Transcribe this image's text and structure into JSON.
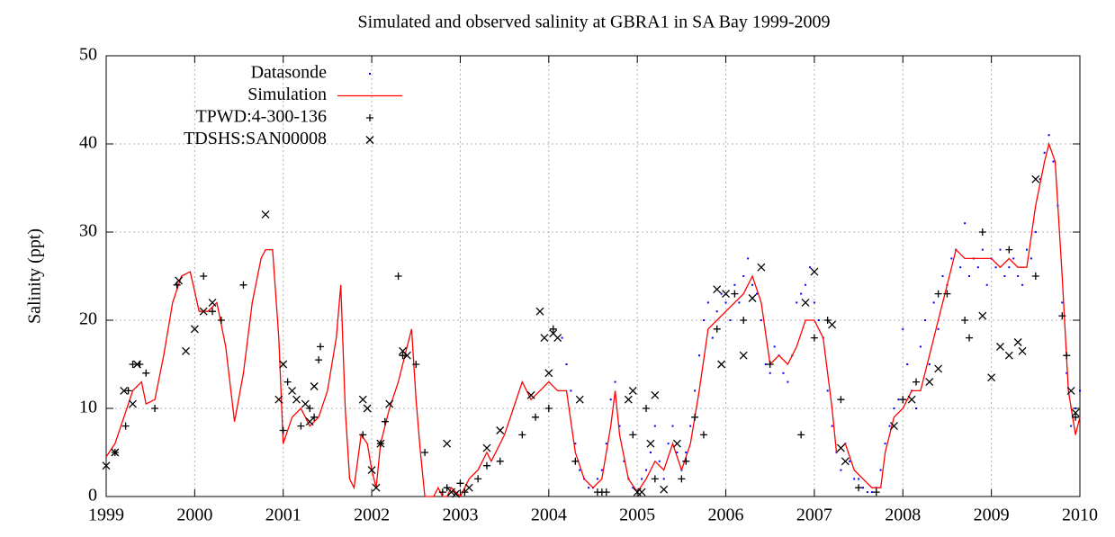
{
  "chart_data": {
    "type": "line",
    "title": "Simulated and observed salinity at GBRA1 in SA Bay 1999-2009",
    "y_label": "Salinity (ppt)",
    "xlim": [
      1999,
      2010
    ],
    "xticks": [
      1999,
      2000,
      2001,
      2002,
      2003,
      2004,
      2005,
      2006,
      2007,
      2008,
      2009,
      2010
    ],
    "ylim": [
      0,
      50
    ],
    "yticks": [
      0,
      10,
      20,
      30,
      40,
      50
    ],
    "grid": true,
    "legend_position": "top-left",
    "series": [
      {
        "name": "Datasonde",
        "color": "#0000ff",
        "style": "dot",
        "x": [
          2004.15,
          2004.2,
          2004.25,
          2004.3,
          2004.35,
          2004.4,
          2004.45,
          2004.5,
          2004.55,
          2004.6,
          2004.65,
          2004.7,
          2004.75,
          2004.8,
          2004.85,
          2004.9,
          2004.95,
          2005.0,
          2005.05,
          2005.1,
          2005.15,
          2005.2,
          2005.25,
          2005.3,
          2005.35,
          2005.4,
          2005.45,
          2005.5,
          2005.55,
          2005.6,
          2005.65,
          2005.7,
          2005.75,
          2005.8,
          2005.85,
          2005.9,
          2005.95,
          2006.0,
          2006.05,
          2006.1,
          2006.15,
          2006.2,
          2006.25,
          2006.3,
          2006.35,
          2006.4,
          2006.45,
          2006.5,
          2006.55,
          2006.6,
          2006.65,
          2006.7,
          2006.75,
          2006.8,
          2006.85,
          2006.9,
          2006.95,
          2007.0,
          2007.05,
          2007.1,
          2007.15,
          2007.2,
          2007.25,
          2007.3,
          2007.35,
          2007.4,
          2007.45,
          2007.5,
          2007.55,
          2007.6,
          2007.65,
          2007.7,
          2007.75,
          2007.8,
          2007.85,
          2007.9,
          2007.95,
          2008.0,
          2008.05,
          2008.1,
          2008.15,
          2008.2,
          2008.25,
          2008.3,
          2008.35,
          2008.4,
          2008.45,
          2008.5,
          2008.55,
          2008.6,
          2008.65,
          2008.7,
          2008.75,
          2008.8,
          2008.85,
          2008.9,
          2008.95,
          2009.0,
          2009.05,
          2009.1,
          2009.15,
          2009.2,
          2009.25,
          2009.3,
          2009.35,
          2009.4,
          2009.45,
          2009.5,
          2009.55,
          2009.6,
          2009.65,
          2009.7,
          2009.75,
          2009.8,
          2009.85,
          2009.9,
          2009.95,
          2010.0
        ],
        "values": [
          18,
          15,
          12,
          6,
          3,
          2,
          1,
          1,
          2,
          3,
          6,
          11,
          13,
          8,
          4,
          2,
          1,
          0.5,
          2,
          3,
          5,
          8,
          4,
          2,
          6,
          8,
          5,
          3,
          5,
          8,
          12,
          16,
          20,
          22,
          18,
          21,
          23,
          22,
          20,
          24,
          22,
          25,
          27,
          24,
          23,
          20,
          15,
          14,
          17,
          16,
          14,
          13,
          16,
          22,
          23,
          24,
          26,
          22,
          20,
          18,
          12,
          8,
          5,
          3,
          6,
          4,
          2,
          2,
          1,
          0.5,
          0.5,
          1,
          3,
          6,
          8,
          10,
          11,
          19,
          15,
          12,
          10,
          17,
          20,
          15,
          22,
          19,
          25,
          24,
          27,
          28,
          26,
          31,
          25,
          27,
          26,
          28,
          24,
          27,
          26,
          28,
          25,
          26,
          27,
          25,
          24,
          28,
          27,
          30,
          36,
          39,
          41,
          38,
          33,
          22,
          14,
          8,
          10,
          12
        ]
      },
      {
        "name": "Simulation",
        "color": "#ff0000",
        "style": "line",
        "x": [
          1999.0,
          1999.1,
          1999.2,
          1999.3,
          1999.4,
          1999.45,
          1999.55,
          1999.65,
          1999.75,
          1999.85,
          1999.95,
          2000.05,
          2000.15,
          2000.25,
          2000.35,
          2000.45,
          2000.55,
          2000.65,
          2000.75,
          2000.8,
          2000.88,
          2000.95,
          2001.0,
          2001.1,
          2001.2,
          2001.3,
          2001.4,
          2001.5,
          2001.6,
          2001.65,
          2001.7,
          2001.75,
          2001.8,
          2001.88,
          2001.95,
          2002.0,
          2002.05,
          2002.1,
          2002.2,
          2002.3,
          2002.4,
          2002.45,
          2002.5,
          2002.55,
          2002.6,
          2002.7,
          2002.75,
          2002.8,
          2002.85,
          2002.9,
          2003.0,
          2003.1,
          2003.2,
          2003.3,
          2003.35,
          2003.5,
          2003.6,
          2003.7,
          2003.8,
          2003.9,
          2004.0,
          2004.1,
          2004.2,
          2004.3,
          2004.4,
          2004.5,
          2004.6,
          2004.7,
          2004.75,
          2004.8,
          2004.9,
          2005.0,
          2005.1,
          2005.2,
          2005.3,
          2005.4,
          2005.5,
          2005.6,
          2005.7,
          2005.8,
          2005.9,
          2006.0,
          2006.1,
          2006.2,
          2006.3,
          2006.4,
          2006.5,
          2006.6,
          2006.7,
          2006.8,
          2006.9,
          2007.0,
          2007.1,
          2007.2,
          2007.25,
          2007.35,
          2007.45,
          2007.55,
          2007.65,
          2007.75,
          2007.8,
          2007.9,
          2008.0,
          2008.1,
          2008.2,
          2008.3,
          2008.4,
          2008.5,
          2008.6,
          2008.7,
          2008.8,
          2008.9,
          2009.0,
          2009.1,
          2009.2,
          2009.3,
          2009.4,
          2009.5,
          2009.6,
          2009.65,
          2009.72,
          2009.8,
          2009.87,
          2009.95,
          2010.0
        ],
        "values": [
          4.5,
          6,
          9,
          12,
          13,
          10.5,
          11,
          16,
          22,
          25,
          25.5,
          21,
          21,
          22,
          17,
          8.5,
          14,
          22,
          27,
          28,
          28,
          18,
          6,
          9,
          10,
          8,
          9,
          12,
          18,
          24,
          10,
          2,
          1,
          7,
          6,
          3,
          1,
          6,
          10,
          13,
          17,
          19,
          11,
          5,
          0,
          0,
          1,
          0,
          0,
          1,
          0,
          2,
          3,
          5,
          4,
          7,
          10,
          13,
          11,
          12,
          13,
          12,
          12,
          5,
          2,
          1,
          2,
          8,
          12,
          7,
          2,
          0.5,
          2,
          4,
          3,
          6,
          3,
          6,
          12,
          19,
          20,
          21,
          22,
          23,
          25,
          22,
          15,
          16,
          15,
          17,
          20,
          20,
          18,
          10,
          5,
          6,
          3,
          2,
          1,
          1,
          5,
          9,
          10,
          12,
          12,
          16,
          20,
          24,
          28,
          27,
          27,
          27,
          27,
          26,
          27,
          26,
          26,
          33,
          38,
          40,
          38,
          25,
          12,
          7,
          9
        ]
      },
      {
        "name": "TPWD:4-300-136",
        "color": "#000000",
        "style": "plus",
        "x": [
          1999.1,
          1999.22,
          1999.25,
          1999.3,
          1999.38,
          1999.45,
          1999.55,
          1999.8,
          2000.1,
          2000.2,
          2000.3,
          2000.55,
          2001.0,
          2001.05,
          2001.2,
          2001.3,
          2001.35,
          2001.4,
          2001.42,
          2001.9,
          2002.1,
          2002.15,
          2002.3,
          2002.35,
          2002.5,
          2002.6,
          2002.8,
          2002.85,
          2003.0,
          2003.05,
          2003.2,
          2003.3,
          2003.45,
          2003.7,
          2003.85,
          2004.0,
          2004.05,
          2004.3,
          2004.55,
          2004.6,
          2004.65,
          2004.95,
          2005.1,
          2005.2,
          2005.5,
          2005.55,
          2005.65,
          2005.75,
          2005.9,
          2006.1,
          2006.2,
          2006.5,
          2006.85,
          2007.0,
          2007.15,
          2007.3,
          2007.5,
          2007.7,
          2008.0,
          2008.15,
          2008.4,
          2008.5,
          2008.7,
          2008.75,
          2008.9,
          2009.2,
          2009.5,
          2009.8,
          2009.85,
          2009.95
        ],
        "values": [
          5,
          8,
          12,
          15,
          15,
          14,
          10,
          24,
          25,
          21,
          20,
          24,
          7.5,
          13,
          8,
          10,
          9,
          15.5,
          17,
          7,
          6,
          8.5,
          25,
          16,
          15,
          5,
          0.5,
          1,
          1.5,
          0.5,
          2,
          3.5,
          4,
          7,
          9,
          10,
          19,
          4,
          0.5,
          0.5,
          0.5,
          7,
          10,
          2,
          2,
          4,
          9,
          7,
          19,
          23,
          20,
          15,
          7,
          18,
          20,
          11,
          1,
          0.5,
          11,
          13,
          23,
          23,
          20,
          18,
          30,
          28,
          25,
          20.5,
          16,
          9
        ]
      },
      {
        "name": "TDSHS:SAN00008",
        "color": "#000000",
        "style": "cross",
        "x": [
          1999.0,
          1999.1,
          1999.2,
          1999.3,
          1999.35,
          1999.82,
          1999.9,
          2000.0,
          2000.1,
          2000.2,
          2000.8,
          2000.95,
          2001.0,
          2001.1,
          2001.15,
          2001.25,
          2001.3,
          2001.35,
          2001.9,
          2001.95,
          2002.0,
          2002.05,
          2002.1,
          2002.2,
          2002.35,
          2002.4,
          2002.85,
          2002.9,
          2002.95,
          2003.1,
          2003.3,
          2003.45,
          2003.8,
          2003.9,
          2003.95,
          2004.0,
          2004.05,
          2004.1,
          2004.35,
          2004.9,
          2004.95,
          2005.0,
          2005.05,
          2005.15,
          2005.2,
          2005.3,
          2005.45,
          2005.9,
          2005.95,
          2006.0,
          2006.2,
          2006.3,
          2006.4,
          2006.9,
          2007.0,
          2007.2,
          2007.3,
          2007.35,
          2007.9,
          2008.1,
          2008.3,
          2008.4,
          2008.9,
          2009.0,
          2009.1,
          2009.2,
          2009.3,
          2009.35,
          2009.5,
          2009.9,
          2009.95
        ],
        "values": [
          3.5,
          5,
          12,
          10.5,
          15,
          24.5,
          16.5,
          19,
          21,
          22,
          32,
          11,
          15,
          12,
          11,
          10.5,
          8.5,
          12.5,
          11,
          10,
          3,
          1,
          6,
          10.5,
          16.5,
          16,
          6,
          0.5,
          0.3,
          1,
          5.5,
          7.5,
          11.5,
          21,
          18,
          14,
          18.5,
          18,
          11,
          11,
          12,
          0.5,
          0.5,
          6,
          11.5,
          0.8,
          6,
          23.5,
          15,
          23,
          16,
          22.5,
          26,
          22,
          25.5,
          19.5,
          5.5,
          4,
          8,
          11,
          13,
          14.5,
          20.5,
          13.5,
          17,
          16,
          17.5,
          16.5,
          36,
          12,
          9.5
        ]
      }
    ]
  }
}
